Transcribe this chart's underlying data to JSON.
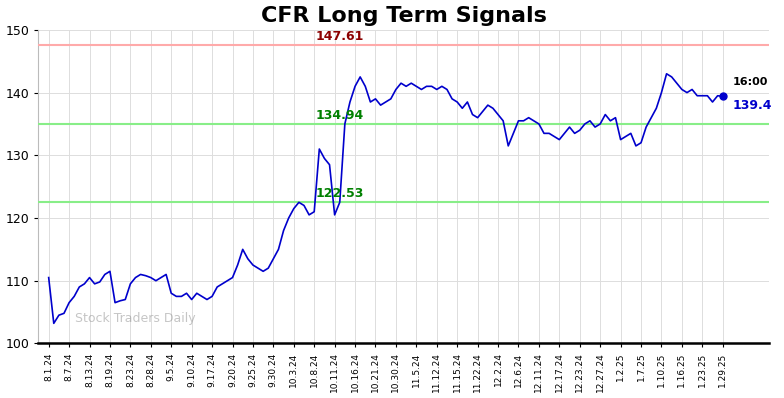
{
  "title": "CFR Long Term Signals",
  "watermark": "Stock Traders Daily",
  "ylim": [
    100,
    150
  ],
  "yticks": [
    100,
    110,
    120,
    130,
    140,
    150
  ],
  "red_line": 147.61,
  "green_line_upper": 134.94,
  "green_line_lower": 122.53,
  "annotation_red": "147.61",
  "annotation_green_upper": "134.94",
  "annotation_green_lower": "122.53",
  "annotation_end_time": "16:00",
  "annotation_end_value": "139.4",
  "line_color": "#0000cc",
  "red_line_color": "#ffaaaa",
  "green_line_color": "#88ee88",
  "background_color": "#ffffff",
  "title_fontsize": 16,
  "xtick_labels": [
    "8.1.24",
    "8.7.24",
    "8.13.24",
    "8.19.24",
    "8.23.24",
    "8.28.24",
    "9.5.24",
    "9.10.24",
    "9.17.24",
    "9.20.24",
    "9.25.24",
    "9.30.24",
    "10.3.24",
    "10.8.24",
    "10.11.24",
    "10.16.24",
    "10.21.24",
    "10.30.24",
    "11.5.24",
    "11.12.24",
    "11.15.24",
    "11.22.24",
    "12.2.24",
    "12.6.24",
    "12.11.24",
    "12.17.24",
    "12.23.24",
    "12.27.24",
    "1.2.25",
    "1.7.25",
    "1.10.25",
    "1.16.25",
    "1.23.25",
    "1.29.25"
  ],
  "prices": [
    110.5,
    103.2,
    104.5,
    104.8,
    106.5,
    107.5,
    109.0,
    109.5,
    110.5,
    109.5,
    109.8,
    111.0,
    111.5,
    106.5,
    106.8,
    107.0,
    109.5,
    110.5,
    111.0,
    110.8,
    110.5,
    110.0,
    110.5,
    111.0,
    108.0,
    107.5,
    107.5,
    108.0,
    107.0,
    108.0,
    107.5,
    107.0,
    107.5,
    109.0,
    109.5,
    110.0,
    110.5,
    112.5,
    115.0,
    113.5,
    112.5,
    112.0,
    111.5,
    112.0,
    113.5,
    115.0,
    118.0,
    120.0,
    121.5,
    122.5,
    122.0,
    120.5,
    121.0,
    131.0,
    129.5,
    128.5,
    120.5,
    122.5,
    135.0,
    138.5,
    141.0,
    142.5,
    141.0,
    138.5,
    139.0,
    138.0,
    138.5,
    139.0,
    140.5,
    141.5,
    141.0,
    141.5,
    141.0,
    140.5,
    141.0,
    141.0,
    140.5,
    141.0,
    140.5,
    139.0,
    138.5,
    137.5,
    138.5,
    136.5,
    136.0,
    137.0,
    138.0,
    137.5,
    136.5,
    135.5,
    131.5,
    133.5,
    135.5,
    135.5,
    136.0,
    135.5,
    135.0,
    133.5,
    133.5,
    133.0,
    132.5,
    133.5,
    134.5,
    133.5,
    134.0,
    135.0,
    135.5,
    134.5,
    135.0,
    136.5,
    135.5,
    136.0,
    132.5,
    133.0,
    133.5,
    131.5,
    132.0,
    134.5,
    136.0,
    137.5,
    140.0,
    143.0,
    142.5,
    141.5,
    140.5,
    140.0,
    140.5,
    139.5,
    139.5,
    139.5,
    138.5,
    139.5,
    139.4
  ]
}
